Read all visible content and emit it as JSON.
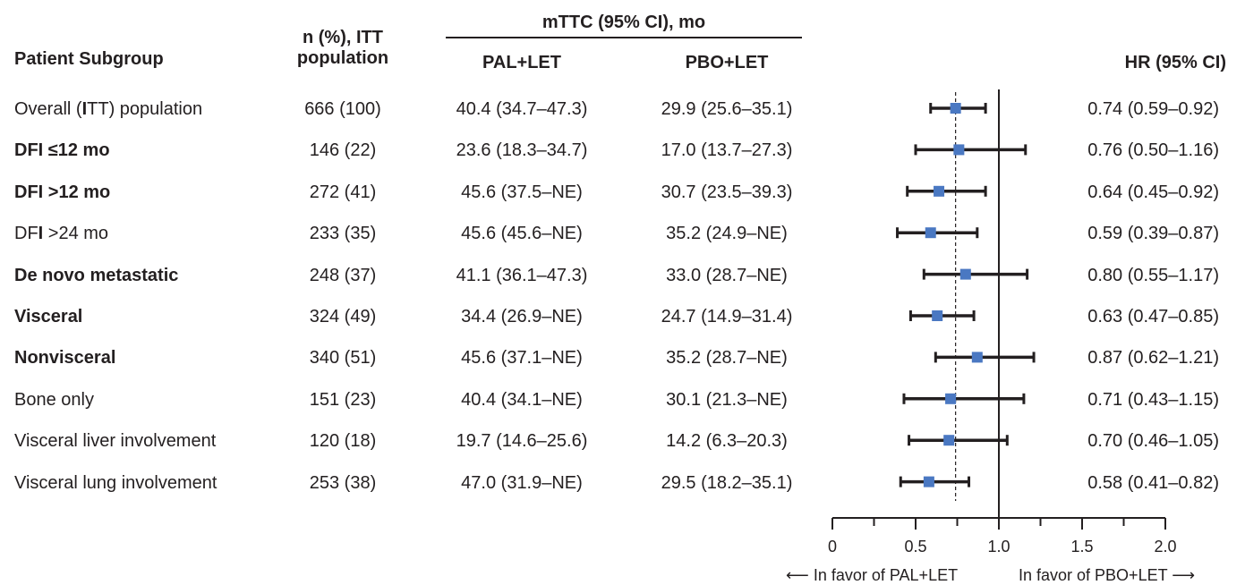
{
  "headers": {
    "subgroup": "Patient Subgroup",
    "n_line1": "n (%), ITT",
    "n_line2": "population",
    "mttc": "mTTC (95% CI), mo",
    "arm1": "PAL+LET",
    "arm2": "PBO+LET",
    "hr": "HR (95% CI)"
  },
  "rows": [
    {
      "label_pre": "Overall (",
      "label_bold": "I",
      "label_post": "TT) population",
      "n": "666 (100)",
      "pal": "40.4 (34.7–47.3)",
      "pbo": "29.9 (25.6–35.1)",
      "hr_text": "0.74 (0.59–0.92)"
    },
    {
      "label_pre": "",
      "label_bold": "DFI ≤12 mo",
      "label_post": "",
      "n": "146 (22)",
      "pal": "23.6 (18.3–34.7)",
      "pbo": "17.0 (13.7–27.3)",
      "hr_text": "0.76 (0.50–1.16)"
    },
    {
      "label_pre": "",
      "label_bold": "DFI >12 mo",
      "label_post": "",
      "n": "272 (41)",
      "pal": "45.6 (37.5–NE)",
      "pbo": "30.7 (23.5–39.3)",
      "hr_text": "0.64 (0.45–0.92)"
    },
    {
      "label_pre": "DF",
      "label_bold": "I",
      "label_post": " >24 mo",
      "n": "233 (35)",
      "pal": "45.6 (45.6–NE)",
      "pbo": "35.2 (24.9–NE)",
      "hr_text": "0.59 (0.39–0.87)"
    },
    {
      "label_pre": "",
      "label_bold": "De novo metastatic",
      "label_post": "",
      "n": "248 (37)",
      "pal": "41.1 (36.1–47.3)",
      "pbo": "33.0 (28.7–NE)",
      "hr_text": "0.80 (0.55–1.17)"
    },
    {
      "label_pre": "",
      "label_bold": "Visceral",
      "label_post": "",
      "n": "324 (49)",
      "pal": "34.4 (26.9–NE)",
      "pbo": "24.7 (14.9–31.4)",
      "hr_text": "0.63 (0.47–0.85)"
    },
    {
      "label_pre": "",
      "label_bold": "Nonvisceral",
      "label_post": "",
      "n": "340 (51)",
      "pal": "45.6 (37.1–NE)",
      "pbo": "35.2 (28.7–NE)",
      "hr_text": "0.87 (0.62–1.21)"
    },
    {
      "label_pre": "Bone only",
      "label_bold": "",
      "label_post": "",
      "n": "151 (23)",
      "pal": "40.4 (34.1–NE)",
      "pbo": "30.1 (21.3–NE)",
      "hr_text": "0.71 (0.43–1.15)"
    },
    {
      "label_pre": "Visceral liver involvement",
      "label_bold": "",
      "label_post": "",
      "n": "120 (18)",
      "pal": "19.7 (14.6–25.6)",
      "pbo": "14.2 (6.3–20.3)",
      "hr_text": "0.70 (0.46–1.05)"
    },
    {
      "label_pre": "Visceral lung involvement",
      "label_bold": "",
      "label_post": "",
      "n": "253 (38)",
      "pal": "47.0 (31.9–NE)",
      "pbo": "29.5 (18.2–35.1)",
      "hr_text": "0.58 (0.41–0.82)"
    }
  ],
  "footer": {
    "favor_left": "In favor of PAL+LET",
    "favor_right": "In favor of PBO+LET"
  },
  "chart_data": {
    "type": "scatter",
    "subtype": "forest-plot",
    "categories": [
      "Overall (ITT) population",
      "DFI ≤12 mo",
      "DFI >12 mo",
      "DFI >24 mo",
      "De novo metastatic",
      "Visceral",
      "Nonvisceral",
      "Bone only",
      "Visceral liver involvement",
      "Visceral lung involvement"
    ],
    "hr": [
      0.74,
      0.76,
      0.64,
      0.59,
      0.8,
      0.63,
      0.87,
      0.71,
      0.7,
      0.58
    ],
    "ci_low": [
      0.59,
      0.5,
      0.45,
      0.39,
      0.55,
      0.47,
      0.62,
      0.43,
      0.46,
      0.41
    ],
    "ci_high": [
      0.92,
      1.16,
      0.92,
      0.87,
      1.17,
      0.85,
      1.21,
      1.15,
      1.05,
      0.82
    ],
    "xlim": [
      0,
      2.0
    ],
    "xticks": [
      "0",
      "0.5",
      "1.0",
      "1.5",
      "2.0"
    ],
    "reference_line": 1.0,
    "overall_line": 0.74,
    "marker_color": "#4a78c2",
    "line_color": "#231f20"
  }
}
